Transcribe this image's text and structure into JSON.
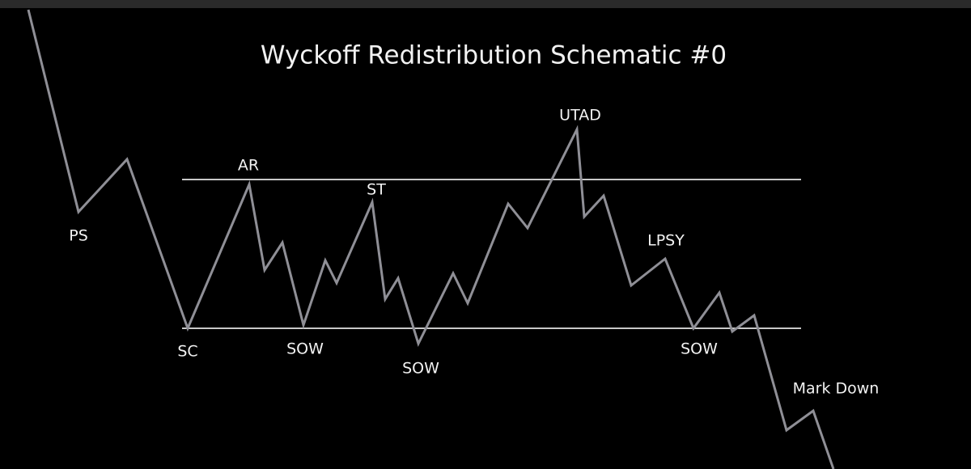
{
  "title": "Wyckoff Redistribution Schematic #0",
  "labels": [
    "PS",
    "AR",
    "SC",
    "SOW",
    "ST",
    "SOW",
    "UTAD",
    "LPSY",
    "SOW",
    "Mark Down"
  ]
}
